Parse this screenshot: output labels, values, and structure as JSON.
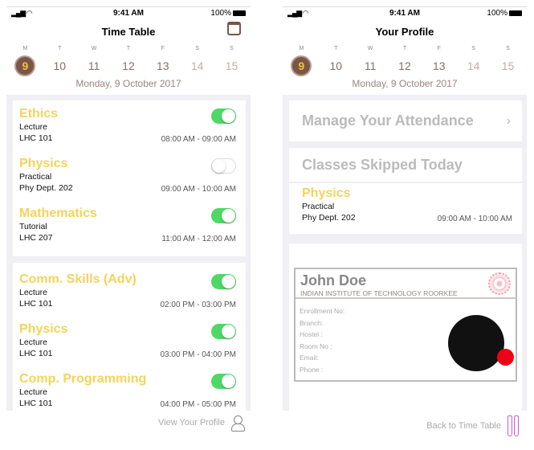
{
  "status": {
    "time": "9:41 AM",
    "battery": "100%"
  },
  "week": {
    "letters": [
      "M",
      "T",
      "W",
      "T",
      "F",
      "S",
      "S"
    ],
    "days": [
      "9",
      "10",
      "11",
      "12",
      "13",
      "14",
      "15"
    ],
    "selected": "9",
    "date": "Monday, 9 October 2017"
  },
  "timetable": {
    "title": "Time Table",
    "groups": [
      [
        {
          "name": "Ethics",
          "type": "Lecture",
          "room": "LHC 101",
          "time": "08:00 AM - 09:00 AM",
          "on": true
        },
        {
          "name": "Physics",
          "type": "Practical",
          "room": "Phy Dept. 202",
          "time": "09:00 AM - 10:00 AM",
          "on": false
        },
        {
          "name": "Mathematics",
          "type": "Tutorial",
          "room": "LHC 207",
          "time": "11:00 AM - 12:00 AM",
          "on": true
        }
      ],
      [
        {
          "name": "Comm. Skills (Adv)",
          "type": "Lecture",
          "room": "LHC 101",
          "time": "02:00 PM - 03:00 PM",
          "on": true
        },
        {
          "name": "Physics",
          "type": "Lecture",
          "room": "LHC 101",
          "time": "03:00 PM - 04:00 PM",
          "on": true
        },
        {
          "name": "Comp. Programming",
          "type": "Lecture",
          "room": "LHC 101",
          "time": "04:00 PM - 05:00 PM",
          "on": true
        }
      ]
    ],
    "footer": "View Your Profile"
  },
  "profile": {
    "title": "Your Profile",
    "manage": "Manage Your Attendance",
    "skipped_title": "Classes Skipped Today",
    "skipped": {
      "name": "Physics",
      "type": "Practical",
      "room": "Phy Dept. 202",
      "time": "09:00 AM - 10:00 AM"
    },
    "card": {
      "name": "John Doe",
      "institute": "INDIAN INSTITUTE OF TECHNOLOGY ROORKEE",
      "fields": [
        "Enrollment No:",
        "Branch:",
        "Hostel :",
        "Room No :",
        "Email:",
        "Phone :"
      ]
    },
    "footer": "Back to Time Table"
  },
  "colors": {
    "accent": "#f5d35a",
    "toggle_on": "#4cd964",
    "brown": "#7a5548"
  }
}
